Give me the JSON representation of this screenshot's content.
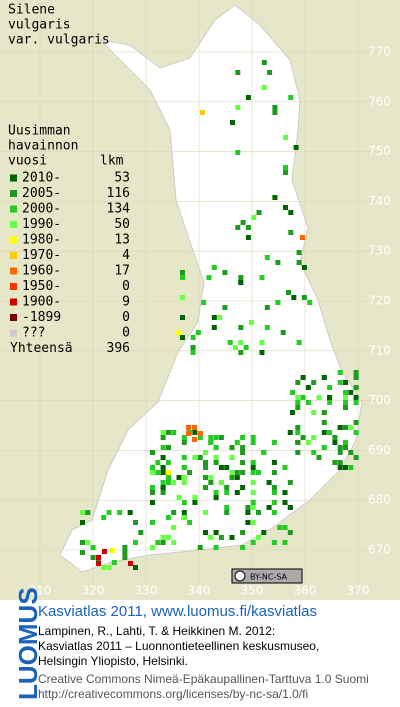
{
  "title": [
    "Silene",
    "vulgaris",
    "var. vulgaris"
  ],
  "legend": {
    "heading": [
      "Uusimman",
      "havainnon",
      "vuosi"
    ],
    "count_heading": "lkm",
    "rows": [
      {
        "label": "2010-",
        "count": 53,
        "color": "#006400"
      },
      {
        "label": "2005-",
        "count": 116,
        "color": "#1e9a1e"
      },
      {
        "label": "2000-",
        "count": 134,
        "color": "#22cc22"
      },
      {
        "label": "1990-",
        "count": 50,
        "color": "#66ff44"
      },
      {
        "label": "1980-",
        "count": 13,
        "color": "#ffff00"
      },
      {
        "label": "1970-",
        "count": 4,
        "color": "#ffcc00"
      },
      {
        "label": "1960-",
        "count": 17,
        "color": "#ff6600"
      },
      {
        "label": "1950-",
        "count": 0,
        "color": "#ff3300"
      },
      {
        "label": "1900-",
        "count": 9,
        "color": "#cc0000"
      },
      {
        "label": "-1899",
        "count": 0,
        "color": "#800000"
      },
      {
        "label": "???",
        "count": 0,
        "color": "#cccccc"
      }
    ],
    "total_label": "Yhteensä",
    "total": 396
  },
  "x_labels": [
    310,
    320,
    330,
    340,
    350,
    360,
    370
  ],
  "y_labels": [
    670,
    680,
    690,
    700,
    710,
    720,
    730,
    740,
    750,
    760,
    770
  ],
  "license_badge": "BY-NC-SA",
  "footer": {
    "logo": "LUOMUS",
    "link": "Kasviatlas 2011, www.luomus.fi/kasviatlas",
    "citation": [
      "Lampinen, R., Lahti, T. & Heikkinen M. 2012:",
      "Kasviatlas 2011 – Luonnontieteellinen keskusmuseo,",
      "Helsingin Yliopisto, Helsinki."
    ],
    "license": [
      "Creative Commons Nimeä-Epäkaupallinen-Tarttuva 1.0 Suomi",
      "http://creativecommons.org/licenses/by-nc-sa/1.0/fi"
    ]
  }
}
